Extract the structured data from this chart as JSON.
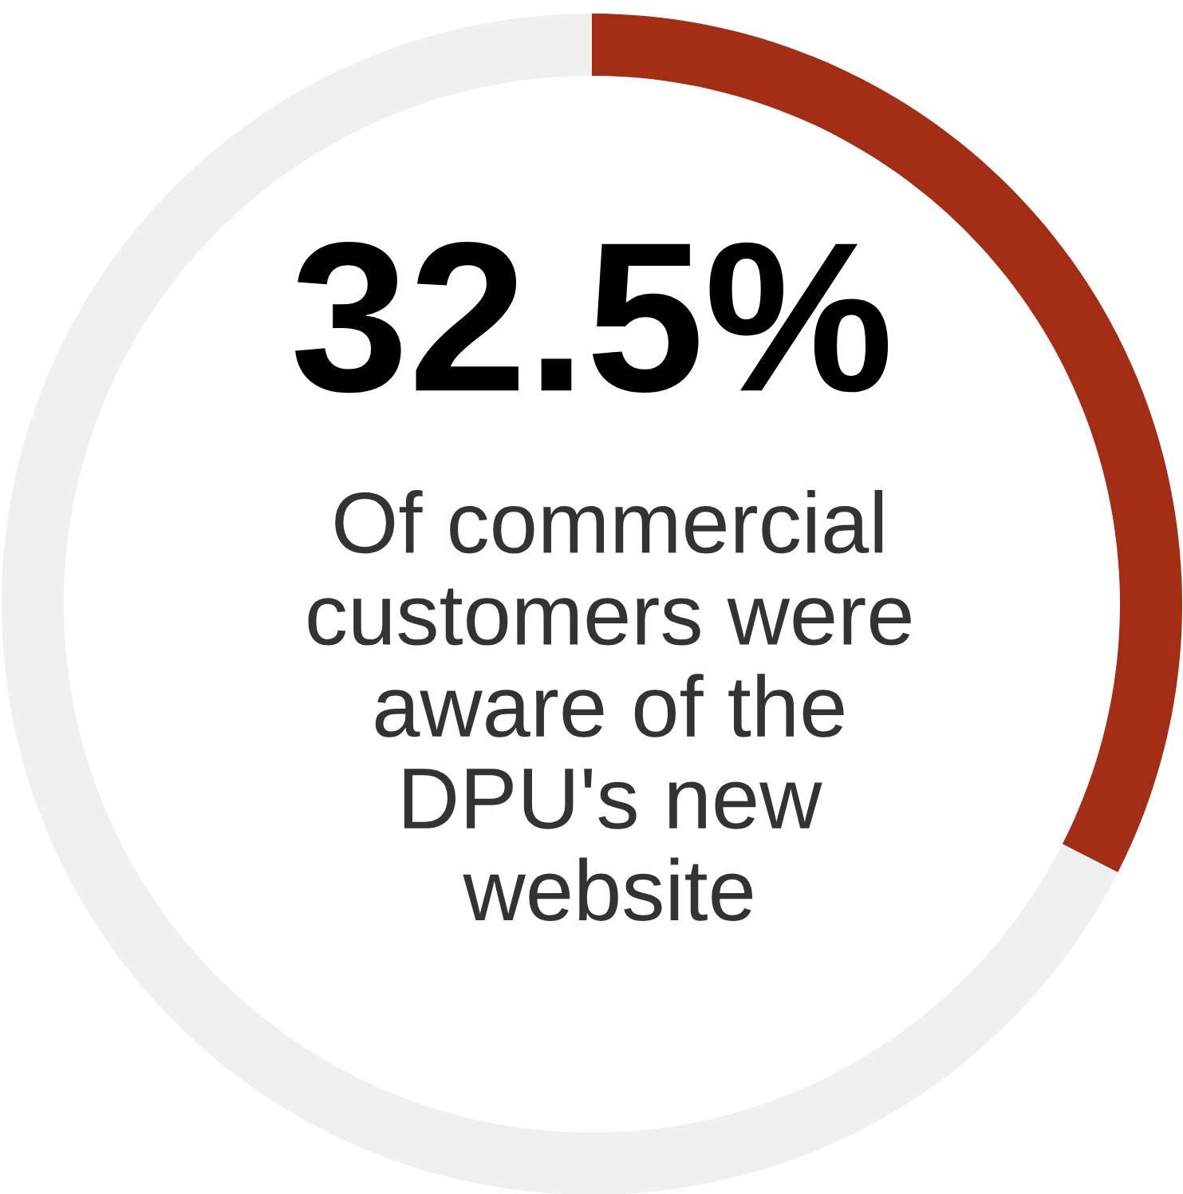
{
  "chart_data": {
    "type": "donut",
    "categories": [
      null,
      null
    ],
    "values": [
      32.5,
      67.5
    ],
    "colors": [
      "#a32e17",
      "#f0f0f0"
    ],
    "value_labels": [
      "32.5%",
      null
    ],
    "annotations": [
      "Of commercial\ncustomers were\naware of the\nDPU's new\nwebsite"
    ]
  }
}
